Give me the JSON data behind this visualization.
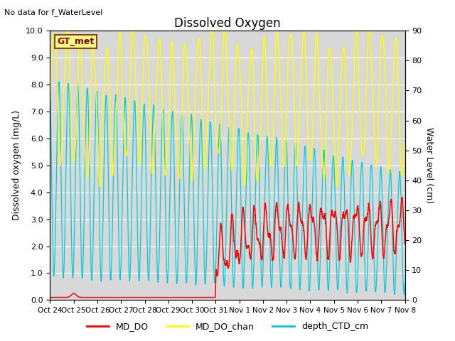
{
  "title": "Dissolved Oxygen",
  "ylabel_left": "Dissolved oxygen (mg/L)",
  "ylabel_right": "Water Level (cm)",
  "ylim_left": [
    0.0,
    10.0
  ],
  "ylim_right": [
    0,
    90
  ],
  "no_data_text": "No data for f_WaterLevel",
  "gt_met_label": "GT_met",
  "legend_entries": [
    "MD_DO",
    "MD_DO_chan",
    "depth_CTD_cm"
  ],
  "line_colors": {
    "MD_DO": "#ff0000",
    "MD_DO_chan": "#ffff00",
    "depth_CTD_cm": "#00ccdd"
  },
  "bg_color": "#d8d8d8",
  "fig_bg": "#ffffff",
  "grid_color": "#ffffff",
  "xtick_labels": [
    "Oct 24",
    "Oct 25",
    "Oct 26",
    "Oct 27",
    "Oct 28",
    "Oct 29",
    "Oct 30",
    "Oct 31",
    "Nov 1",
    "Nov 2",
    "Nov 3",
    "Nov 4",
    "Nov 5",
    "Nov 6",
    "Nov 7",
    "Nov 8"
  ],
  "xtick_positions": [
    0,
    1,
    2,
    3,
    4,
    5,
    6,
    7,
    8,
    9,
    10,
    11,
    12,
    13,
    14,
    15
  ],
  "yticks_left": [
    0.0,
    1.0,
    2.0,
    3.0,
    4.0,
    5.0,
    6.0,
    7.0,
    8.0,
    9.0,
    10.0
  ],
  "yticks_right": [
    0,
    10,
    20,
    30,
    40,
    50,
    60,
    70,
    80,
    90
  ]
}
